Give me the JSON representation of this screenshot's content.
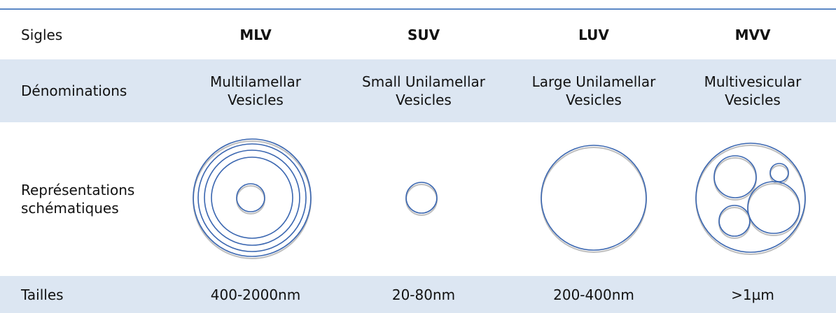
{
  "table": {
    "header": [
      "Sigles",
      "MLV",
      "SUV",
      "LUV",
      "MVV"
    ],
    "rows": [
      {
        "label": [
          "Dénominations"
        ],
        "cells": [
          [
            "Multilamellar",
            "Vesicles"
          ],
          [
            "Small Unilamellar",
            "Vesicles"
          ],
          [
            "Large Unilamellar",
            "Vesicles"
          ],
          [
            "Multivesicular",
            "Vesicles"
          ]
        ]
      },
      {
        "label": [
          "Représentations",
          "schématiques"
        ]
      },
      {
        "label": [
          "Tailles"
        ],
        "cells": [
          [
            "400-2000nm"
          ],
          [
            "20-80nm"
          ],
          [
            "200-400nm"
          ],
          [
            ">1µm"
          ]
        ]
      }
    ]
  }
}
